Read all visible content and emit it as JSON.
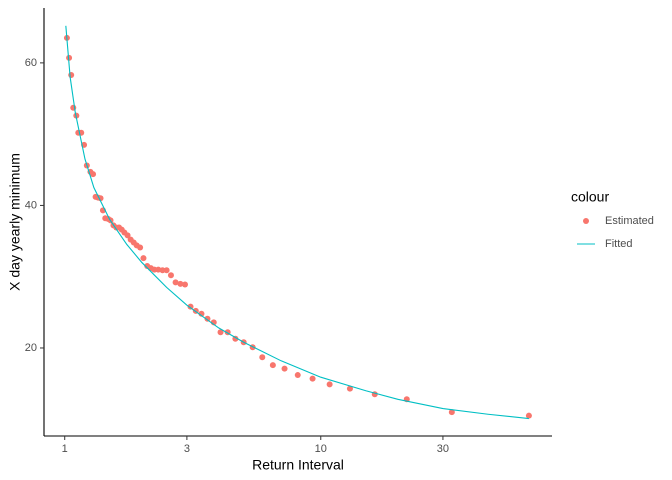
{
  "chart_data": {
    "type": "scatter",
    "x_label": "Return Interval",
    "y_label": "X day yearly minimum",
    "legend_title": "colour",
    "xlog": true,
    "xlim": [
      0.83,
      80
    ],
    "ylim": [
      7.65,
      67.7
    ],
    "xticks": [
      1,
      3,
      10,
      30
    ],
    "yticks": [
      20,
      40,
      60
    ],
    "series": [
      {
        "name": "Estimated",
        "type": "scatter",
        "color": "#F8766D",
        "x": [
          65,
          32.5,
          21.67,
          16.25,
          13,
          10.83,
          9.29,
          8.13,
          7.22,
          6.5,
          5.91,
          5.42,
          5,
          4.64,
          4.33,
          4.06,
          3.82,
          3.61,
          3.42,
          3.25,
          3.1,
          2.95,
          2.83,
          2.71,
          2.6,
          2.5,
          2.41,
          2.32,
          2.24,
          2.17,
          2.1,
          2.03,
          1.97,
          1.91,
          1.86,
          1.81,
          1.76,
          1.71,
          1.67,
          1.63,
          1.59,
          1.55,
          1.51,
          1.48,
          1.44,
          1.41,
          1.38,
          1.35,
          1.32,
          1.29,
          1.26,
          1.22,
          1.19,
          1.16,
          1.13,
          1.11,
          1.08,
          1.06,
          1.04,
          1.02
        ],
        "values": [
          10.5,
          11.0,
          12.8,
          13.5,
          14.3,
          14.9,
          15.7,
          16.2,
          17.1,
          17.6,
          18.7,
          20.1,
          20.8,
          21.3,
          22.2,
          22.2,
          23.6,
          24.1,
          24.8,
          25.2,
          25.8,
          28.9,
          29.0,
          29.2,
          30.2,
          30.9,
          30.9,
          31.0,
          31.0,
          31.2,
          31.5,
          32.6,
          34.1,
          34.4,
          34.8,
          35.2,
          35.8,
          36.2,
          36.6,
          36.9,
          36.9,
          37.2,
          37.9,
          38.1,
          38.2,
          39.3,
          41.0,
          41.1,
          41.2,
          44.4,
          44.7,
          45.6,
          48.5,
          50.2,
          50.2,
          52.6,
          53.7,
          58.3,
          60.7,
          63.5
        ]
      },
      {
        "name": "Fitted",
        "type": "line",
        "color": "#00BFC4",
        "x": [
          1.01,
          1.05,
          1.1,
          1.2,
          1.3,
          1.5,
          1.75,
          2,
          2.5,
          3,
          4,
          5,
          7,
          10,
          15,
          20,
          30,
          45,
          65
        ],
        "values": [
          65.2,
          58,
          53,
          46.5,
          42.5,
          38,
          34.5,
          32,
          28.5,
          26,
          22.8,
          20.8,
          18.2,
          15.9,
          14,
          12.8,
          11.5,
          10.7,
          10.1
        ]
      }
    ]
  }
}
